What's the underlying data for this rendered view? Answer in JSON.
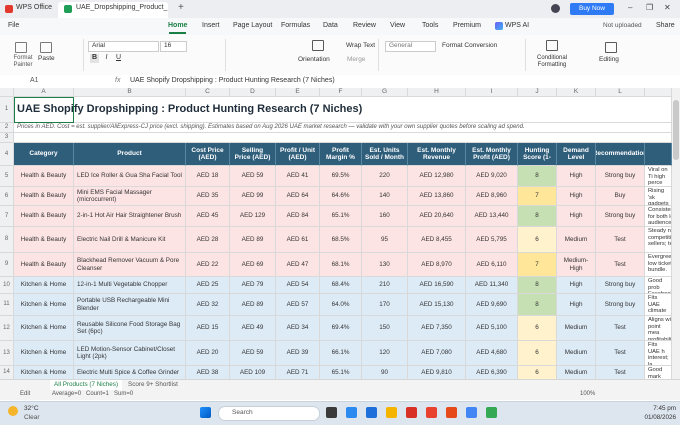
{
  "title_bar": {
    "app_tab": "WPS Office",
    "doc_tab": "UAE_Dropshipping_Product_",
    "new_tab": "+",
    "buy_now": "Buy Now"
  },
  "menu": {
    "file": "File",
    "tabs": [
      "Home",
      "Insert",
      "Page Layout",
      "Formulas",
      "Data",
      "Review",
      "View",
      "Tools",
      "Premium",
      "WPS AI"
    ],
    "status": "Not uploaded",
    "share": "Share"
  },
  "ribbon": {
    "format_painter": "Format Painter",
    "paste": "Paste",
    "font": "Arial",
    "font_size": "16",
    "wrap_text": "Wrap Text",
    "number_format": "General",
    "format_conversion": "Format Conversion",
    "orientation": "Orientation",
    "merge": "Merge",
    "conditional_formatting": "Conditional Formatting",
    "editing": "Editing"
  },
  "formula_bar": {
    "cell": "A1",
    "fx": "fx",
    "content": "UAE Shopify Dropshipping : Product Hunting Research (7 Niches)"
  },
  "sheet": {
    "columns": [
      "A",
      "B",
      "C",
      "D",
      "E",
      "F",
      "G",
      "H",
      "I",
      "J",
      "K",
      "L"
    ],
    "row_numbers": [
      1,
      2,
      3,
      4,
      5,
      6,
      7,
      8,
      9,
      10,
      11,
      12,
      13,
      14
    ],
    "title": "UAE Shopify Dropshipping : Product Hunting Research (7 Niches)",
    "note": "Prices in AED. Cost = est. supplier/AliExpress-CJ price (excl. shipping). Estimates based on Aug 2026 UAE market research — validate with your own supplier quotes before scaling ad spend.",
    "headers": [
      "Category",
      "Product",
      "Cost Price (AED)",
      "Selling Price (AED)",
      "Profit / Unit (AED)",
      "Profit Margin %",
      "Est. Units Sold / Month",
      "Est. Monthly Revenue",
      "Est. Monthly Profit (AED)",
      "Hunting Score (1-",
      "Demand Level",
      "Recommendation"
    ],
    "rows": [
      {
        "fill": "#fde4e4",
        "score_fill": "#c6e0b4",
        "cells": [
          "Health & Beauty",
          "LED Ice Roller & Gua Sha Facial Tool",
          "AED 18",
          "AED 59",
          "AED 41",
          "69.5%",
          "220",
          "AED 12,980",
          "AED 9,020",
          "8",
          "High",
          "Strong buy",
          "Viral on Ti high perce video"
        ]
      },
      {
        "fill": "#fde4e4",
        "score_fill": "#ffe699",
        "cells": [
          "Health & Beauty",
          "Mini EMS Facial Massager (microcurrent)",
          "AED 35",
          "AED 99",
          "AED 64",
          "64.6%",
          "140",
          "AED 13,860",
          "AED 8,960",
          "7",
          "High",
          "Buy",
          "Rising 'sk gadgets"
        ]
      },
      {
        "fill": "#fde4e4",
        "score_fill": "#c6e0b4",
        "cells": [
          "Health & Beauty",
          "2-in-1 Hot Air Hair Straightener Brush",
          "AED 45",
          "AED 129",
          "AED 84",
          "65.1%",
          "160",
          "AED 20,640",
          "AED 13,440",
          "8",
          "High",
          "Strong buy",
          "Consistent for both lo audience."
        ]
      },
      {
        "fill": "#fde4e4",
        "score_fill": "#fff2cc",
        "cells": [
          "Health & Beauty",
          "Electric Nail Drill & Manicure Kit",
          "AED 28",
          "AED 89",
          "AED 61",
          "68.5%",
          "95",
          "AED 8,455",
          "AED 5,795",
          "6",
          "Medium",
          "Test",
          "Steady ni competitio sellers; te"
        ]
      },
      {
        "fill": "#fde4e4",
        "score_fill": "#ffe699",
        "cells": [
          "Health & Beauty",
          "Blackhead Remover Vacuum & Pore Cleanser",
          "AED 22",
          "AED 69",
          "AED 47",
          "68.1%",
          "130",
          "AED 8,970",
          "AED 6,110",
          "7",
          "Medium-High",
          "Test",
          "Evergreen low ticket bundle."
        ]
      },
      {
        "fill": "#ddebf7",
        "score_fill": "#c6e0b4",
        "cells": [
          "Kitchen & Home",
          "12-in-1 Multi Vegetable Chopper",
          "AED 25",
          "AED 79",
          "AED 54",
          "68.4%",
          "210",
          "AED 16,590",
          "AED 11,340",
          "8",
          "High",
          "Strong buy",
          "Good prob Facebook"
        ]
      },
      {
        "fill": "#ddebf7",
        "score_fill": "#c6e0b4",
        "cells": [
          "Kitchen & Home",
          "Portable USB Rechargeable Mini Blender",
          "AED 32",
          "AED 89",
          "AED 57",
          "64.0%",
          "170",
          "AED 15,130",
          "AED 9,690",
          "8",
          "High",
          "Strong buy",
          "Fits UAE climate co upsell targ"
        ]
      },
      {
        "fill": "#ddebf7",
        "score_fill": "#fff2cc",
        "cells": [
          "Kitchen & Home",
          "Reusable Silicone Food Storage Bag Set (6pc)",
          "AED 15",
          "AED 49",
          "AED 34",
          "69.4%",
          "150",
          "AED 7,350",
          "AED 5,100",
          "6",
          "Medium",
          "Test",
          "Aligns wit point mea profitabilit"
        ]
      },
      {
        "fill": "#ddebf7",
        "score_fill": "#fff2cc",
        "cells": [
          "Kitchen & Home",
          "LED Motion-Sensor Cabinet/Closet Light (2pk)",
          "AED 20",
          "AED 59",
          "AED 39",
          "66.1%",
          "120",
          "AED 7,080",
          "AED 4,680",
          "6",
          "Medium",
          "Test",
          "Fits UAE h interest; la packs."
        ]
      },
      {
        "fill": "#ddebf7",
        "score_fill": "#fff2cc",
        "cells": [
          "Kitchen & Home",
          "Electric Multi Spice & Coffee Grinder",
          "AED 38",
          "AED 109",
          "AED 71",
          "65.1%",
          "90",
          "AED 9,810",
          "AED 6,390",
          "6",
          "Medium",
          "Test",
          "Good mark niches sha"
        ]
      }
    ]
  },
  "sheet_tabs": [
    "All Products (7 Niches)",
    "Score 9+ Shortlist"
  ],
  "status_bar": {
    "mode": "Edit",
    "average": "Average=0",
    "count": "Count=1",
    "sum": "Sum=0",
    "zoom": "100%"
  },
  "taskbar": {
    "temperature": "32°C",
    "weather": "Clear",
    "search": "Search",
    "time": "7:45 pm",
    "date": "01/08/2026"
  }
}
